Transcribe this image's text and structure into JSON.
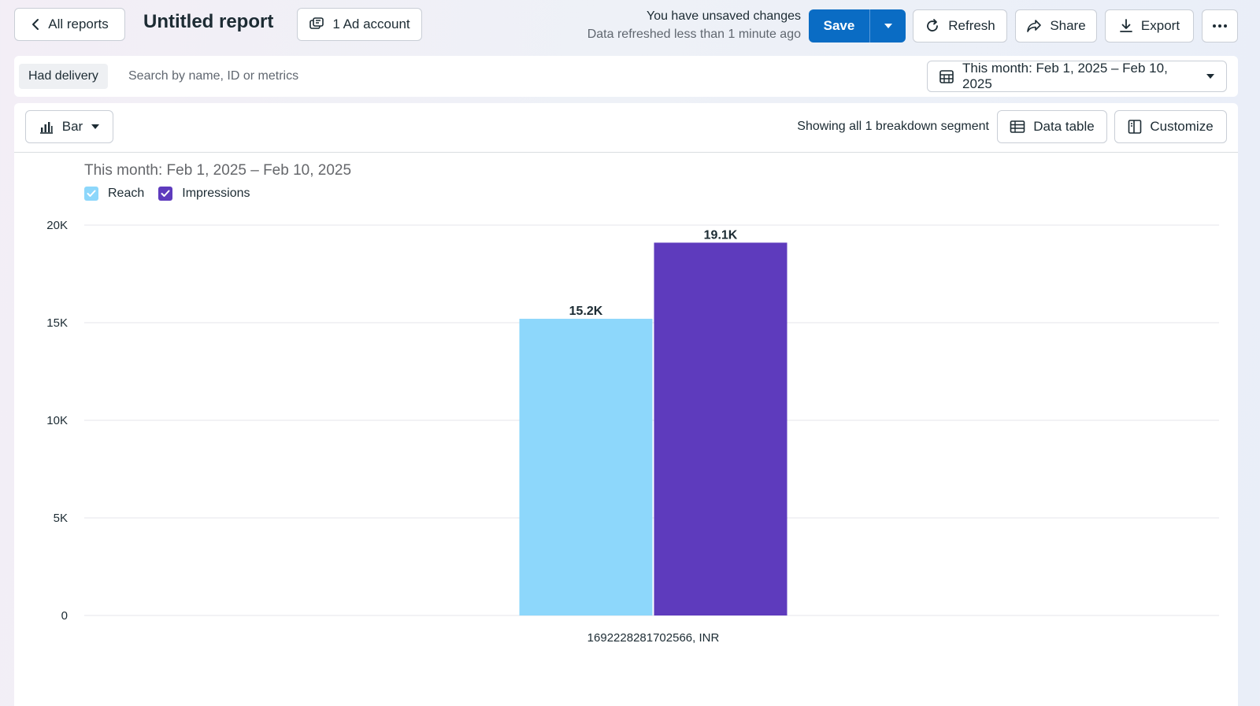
{
  "header": {
    "back_label": "All reports",
    "title": "Untitled report",
    "ad_account_label": "1 Ad account",
    "unsaved_text": "You have unsaved changes",
    "refreshed_text": "Data refreshed less than 1 minute ago",
    "save_label": "Save",
    "refresh_label": "Refresh",
    "share_label": "Share",
    "export_label": "Export",
    "accent_color": "#0a6cc4"
  },
  "filters": {
    "chip_label": "Had delivery",
    "search_placeholder": "Search by name, ID or metrics",
    "search_value": "",
    "date_range_label": "This month: Feb 1, 2025 – Feb 10, 2025"
  },
  "toolbar": {
    "chart_type_label": "Bar",
    "segment_text": "Showing all 1 breakdown segment",
    "data_table_label": "Data table",
    "customize_label": "Customize"
  },
  "chart_data": {
    "type": "bar",
    "title": "This month: Feb 1, 2025 – Feb 10, 2025",
    "categories": [
      "1692228281702566, INR"
    ],
    "series": [
      {
        "name": "Reach",
        "values": [
          15200
        ],
        "value_labels": [
          "15.2K"
        ],
        "color": "#8dd7fb"
      },
      {
        "name": "Impressions",
        "values": [
          19100
        ],
        "value_labels": [
          "19.1K"
        ],
        "color": "#5e3bbd"
      }
    ],
    "ylim": [
      0,
      20000
    ],
    "yticks": [
      0,
      5000,
      10000,
      15000,
      20000
    ],
    "ytick_labels": [
      "0",
      "5K",
      "10K",
      "15K",
      "20K"
    ],
    "grid": true,
    "legend_position": "top-left",
    "xlabel": "",
    "ylabel": ""
  }
}
